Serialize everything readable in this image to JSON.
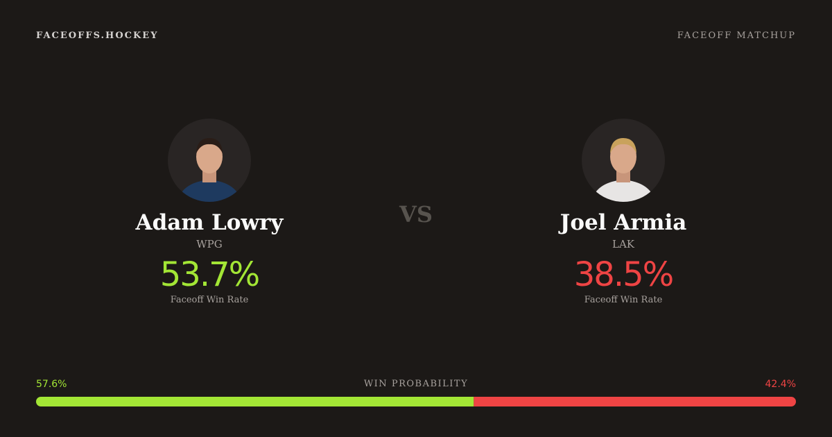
{
  "header": {
    "brand": "FACEOFFS.HOCKEY",
    "label": "FACEOFF MATCHUP"
  },
  "players": [
    {
      "name": "Adam Lowry",
      "team": "WPG",
      "win_rate": "53.7%",
      "win_rate_label": "Faceoff Win Rate",
      "color": "#a3e635"
    },
    {
      "name": "Joel Armia",
      "team": "LAK",
      "win_rate": "38.5%",
      "win_rate_label": "Faceoff Win Rate",
      "color": "#ef4444"
    }
  ],
  "vs": "VS",
  "win_probability": {
    "label": "WIN PROBABILITY",
    "left": {
      "value": 57.6,
      "label": "57.6%"
    },
    "right": {
      "value": 42.4,
      "label": "42.4%"
    }
  }
}
